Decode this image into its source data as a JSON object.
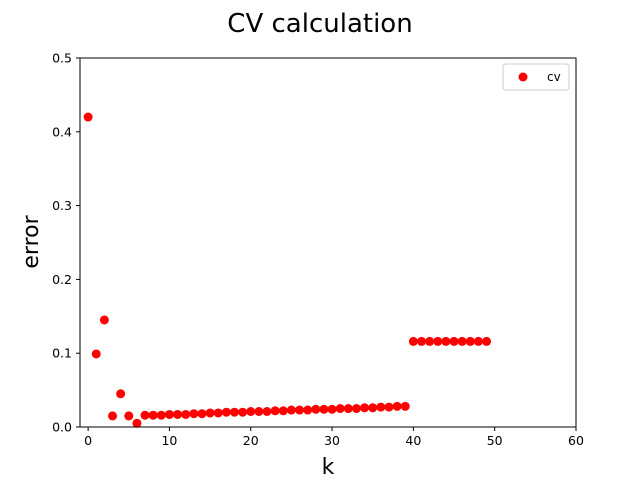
{
  "chart_data": {
    "type": "scatter",
    "title": "CV calculation",
    "xlabel": "k",
    "ylabel": "error",
    "xlim": [
      -1,
      60
    ],
    "ylim": [
      0,
      0.5
    ],
    "xticks": [
      "0",
      "10",
      "20",
      "30",
      "40",
      "50",
      "60"
    ],
    "yticks": [
      "0.0",
      "0.1",
      "0.2",
      "0.3",
      "0.4",
      "0.5"
    ],
    "grid": false,
    "legend": {
      "placement": "top-right",
      "entries": [
        "cv"
      ]
    },
    "series": [
      {
        "name": "cv",
        "color": "#ff0000",
        "marker": "circle",
        "x": [
          0,
          1,
          2,
          3,
          4,
          5,
          6,
          7,
          8,
          9,
          10,
          11,
          12,
          13,
          14,
          15,
          16,
          17,
          18,
          19,
          20,
          21,
          22,
          23,
          24,
          25,
          26,
          27,
          28,
          29,
          30,
          31,
          32,
          33,
          34,
          35,
          36,
          37,
          38,
          39,
          40,
          41,
          42,
          43,
          44,
          45,
          46,
          47,
          48,
          49
        ],
        "y": [
          0.42,
          0.099,
          0.145,
          0.015,
          0.045,
          0.015,
          0.005,
          0.016,
          0.016,
          0.016,
          0.017,
          0.017,
          0.017,
          0.018,
          0.018,
          0.019,
          0.019,
          0.02,
          0.02,
          0.02,
          0.021,
          0.021,
          0.021,
          0.022,
          0.022,
          0.023,
          0.023,
          0.023,
          0.024,
          0.024,
          0.024,
          0.025,
          0.025,
          0.025,
          0.026,
          0.026,
          0.027,
          0.027,
          0.028,
          0.028,
          0.116,
          0.116,
          0.116,
          0.116,
          0.116,
          0.116,
          0.116,
          0.116,
          0.116,
          0.116
        ]
      }
    ]
  }
}
